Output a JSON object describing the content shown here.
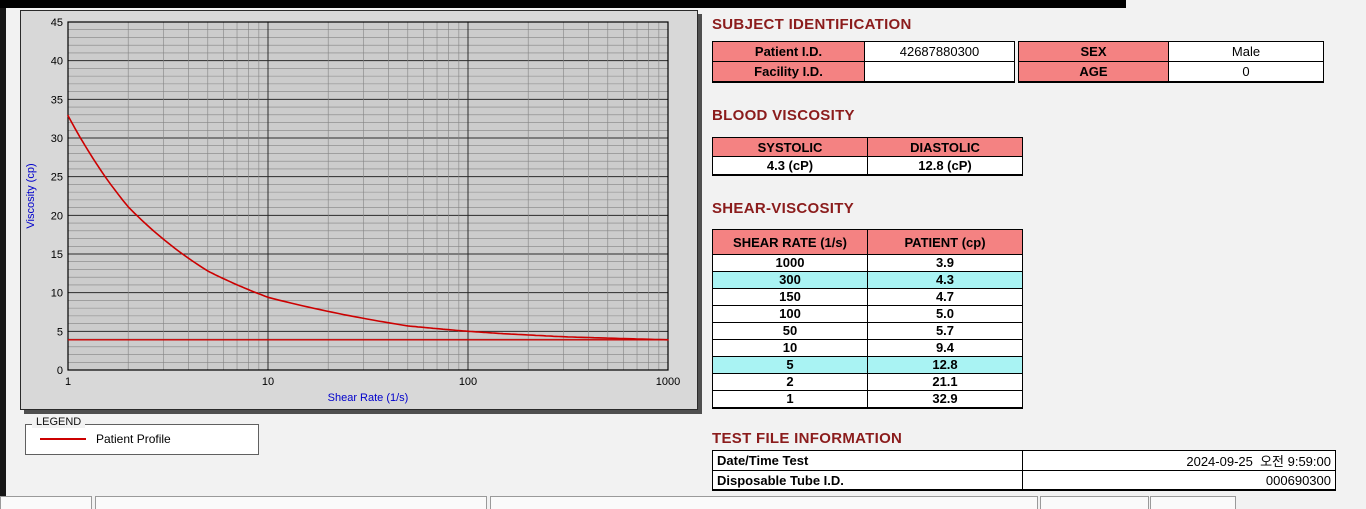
{
  "titles": {
    "subject": "SUBJECT IDENTIFICATION",
    "blood": "BLOOD VISCOSITY",
    "shear": "SHEAR-VISCOSITY",
    "testfile": "TEST FILE INFORMATION"
  },
  "subject": {
    "patient_id_label": "Patient I.D.",
    "patient_id": "42687880300",
    "sex_label": "SEX",
    "sex": "Male",
    "facility_id_label": "Facility I.D.",
    "facility_id": "",
    "age_label": "AGE",
    "age": "0"
  },
  "blood_viscosity": {
    "systolic_label": "SYSTOLIC",
    "systolic": "4.3 (cP)",
    "diastolic_label": "DIASTOLIC",
    "diastolic": "12.8 (cP)"
  },
  "shear_viscosity": {
    "headers": [
      "SHEAR RATE (1/s)",
      "PATIENT (cp)"
    ],
    "rows": [
      {
        "rate": "1000",
        "value": "3.9",
        "highlight": false
      },
      {
        "rate": "300",
        "value": "4.3",
        "highlight": true
      },
      {
        "rate": "150",
        "value": "4.7",
        "highlight": false
      },
      {
        "rate": "100",
        "value": "5.0",
        "highlight": false
      },
      {
        "rate": "50",
        "value": "5.7",
        "highlight": false
      },
      {
        "rate": "10",
        "value": "9.4",
        "highlight": false
      },
      {
        "rate": "5",
        "value": "12.8",
        "highlight": true
      },
      {
        "rate": "2",
        "value": "21.1",
        "highlight": false
      },
      {
        "rate": "1",
        "value": "32.9",
        "highlight": false
      }
    ]
  },
  "test_file": {
    "rows": [
      {
        "label": "Date/Time Test",
        "value": "2024-09-25  오전 9:59:00"
      },
      {
        "label": "Disposable Tube I.D.",
        "value": "000690300"
      }
    ]
  },
  "legend": {
    "box_label": "LEGEND",
    "series_label": "Patient Profile"
  },
  "chart_data": {
    "type": "line",
    "title": "",
    "xlabel": "Shear Rate (1/s)",
    "ylabel": "Viscosity (cp)",
    "x_scale": "log",
    "xlim": [
      1,
      1000
    ],
    "ylim": [
      0,
      45
    ],
    "x_ticks": [
      1,
      10,
      100,
      1000
    ],
    "y_ticks": [
      0,
      5,
      10,
      15,
      20,
      25,
      30,
      35,
      40,
      45
    ],
    "grid": "on",
    "legend_position": "below-left",
    "series": [
      {
        "name": "Patient Profile",
        "color": "#cc0000",
        "x": [
          1,
          2,
          5,
          10,
          50,
          100,
          150,
          300,
          1000
        ],
        "y": [
          32.9,
          21.1,
          12.8,
          9.4,
          5.7,
          5.0,
          4.7,
          4.3,
          3.9
        ]
      }
    ],
    "reference_line": {
      "y": 3.9,
      "color": "#cc0000"
    }
  },
  "colors": {
    "accent_pink": "#f48282",
    "highlight_cyan": "#a9f3f3",
    "title_maroon": "#8b1c1c",
    "axis_blue": "#0000cc",
    "curve_red": "#cc0000"
  }
}
